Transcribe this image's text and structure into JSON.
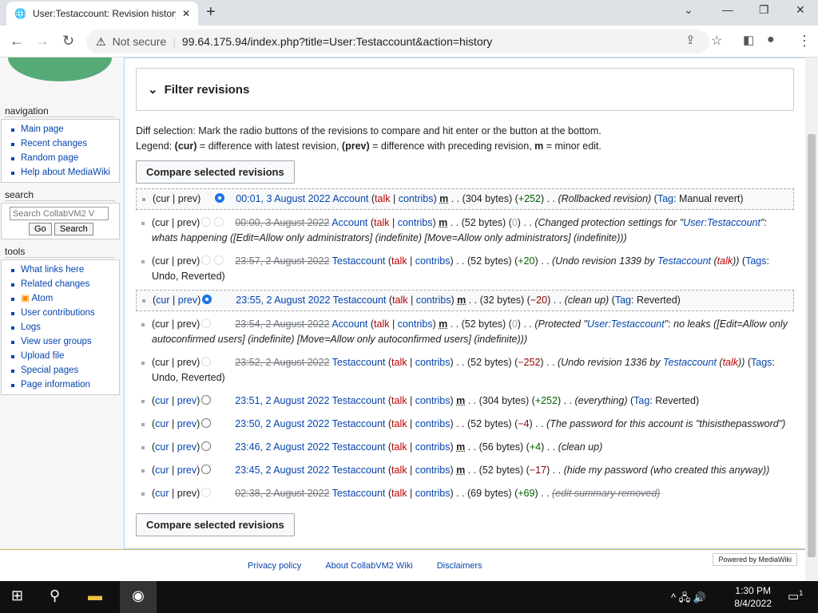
{
  "browser": {
    "tab_title": "User:Testaccount: Revision history",
    "security": "Not secure",
    "url": "99.64.175.94/index.php?title=User:Testaccount&action=history"
  },
  "sidebar": {
    "nav_heading": "navigation",
    "nav": [
      "Main page",
      "Recent changes",
      "Random page",
      "Help about MediaWiki"
    ],
    "search_heading": "search",
    "search_placeholder": "Search CollabVM2 V",
    "go": "Go",
    "search": "Search",
    "tools_heading": "tools",
    "tools": [
      "What links here",
      "Related changes",
      "Atom",
      "User contributions",
      "Logs",
      "View user groups",
      "Upload file",
      "Special pages",
      "Page information"
    ]
  },
  "filter_label": "Filter revisions",
  "legend": {
    "line1": "Diff selection: Mark the radio buttons of the revisions to compare and hit enter or the button at the bottom.",
    "l_prefix": "Legend: ",
    "cur": "(cur)",
    "cur_desc": " = difference with latest revision, ",
    "prev": "(prev)",
    "prev_desc": " = difference with preceding revision, ",
    "m": "m",
    "m_desc": " = minor edit."
  },
  "compare_label": "Compare selected revisions",
  "revisions": [
    {
      "cur_link": false,
      "prev_link": false,
      "r1": "hidden",
      "r2": "on",
      "date": "00:01, 3 August 2022",
      "deleted": false,
      "user": "Account",
      "minor": true,
      "size": "(304 bytes)",
      "diff": "+252",
      "sign": "pos",
      "summary": [
        {
          "t": "(Rollbacked revision)",
          "i": true
        }
      ],
      "tags": [
        {
          "t": " ("
        },
        {
          "t": "Tag",
          "l": true
        },
        {
          "t": ": Manual revert)"
        }
      ],
      "sel": true
    },
    {
      "cur_link": false,
      "prev_link": false,
      "r1": "dis",
      "r2": "dis",
      "date": "00:00, 3 August 2022",
      "deleted": true,
      "user": "Account",
      "minor": true,
      "size": "(52 bytes)",
      "diff": "0",
      "sign": "nul",
      "summary": [
        {
          "t": "(Changed protection settings for \"",
          "i": true
        },
        {
          "t": "User:Testaccount",
          "i": true,
          "l": true
        },
        {
          "t": "\": whats happening ([Edit=Allow only administrators] (indefinite) [Move=Allow only administrators] (indefinite)))",
          "i": true
        }
      ],
      "tags": []
    },
    {
      "cur_link": false,
      "prev_link": false,
      "r1": "dis",
      "r2": "dis",
      "date": "23:57, 2 August 2022",
      "deleted": true,
      "user": "Testaccount",
      "minor": false,
      "size": "(52 bytes)",
      "diff": "+20",
      "sign": "pos",
      "summary": [
        {
          "t": "(Undo revision 1339 by ",
          "i": true
        },
        {
          "t": "Testaccount",
          "i": true,
          "l": true
        },
        {
          "t": " (",
          "i": true
        },
        {
          "t": "talk",
          "i": true,
          "l": true,
          "red": true
        },
        {
          "t": "))",
          "i": true
        }
      ],
      "tags": [
        {
          "t": " ("
        },
        {
          "t": "Tags",
          "l": true
        },
        {
          "t": ": Undo, Reverted)"
        }
      ]
    },
    {
      "cur_link": true,
      "prev_link": true,
      "r1": "on",
      "r2": "hidden",
      "date": "23:55, 2 August 2022",
      "deleted": false,
      "user": "Testaccount",
      "minor": true,
      "size": "(32 bytes)",
      "diff": "−20",
      "sign": "neg",
      "summary": [
        {
          "t": "(clean up)",
          "i": true
        }
      ],
      "tags": [
        {
          "t": " ("
        },
        {
          "t": "Tag",
          "l": true
        },
        {
          "t": ": Reverted)"
        }
      ],
      "sel": true
    },
    {
      "cur_link": false,
      "prev_link": false,
      "r1": "dis",
      "r2": "hidden",
      "date": "23:54, 2 August 2022",
      "deleted": true,
      "user": "Account",
      "minor": true,
      "size": "(52 bytes)",
      "diff": "0",
      "sign": "nul",
      "summary": [
        {
          "t": "(Protected \"",
          "i": true
        },
        {
          "t": "User:Testaccount",
          "i": true,
          "l": true
        },
        {
          "t": "\": no leaks ([Edit=Allow only autoconfirmed users] (indefinite) [Move=Allow only autoconfirmed users] (indefinite)))",
          "i": true
        }
      ],
      "tags": []
    },
    {
      "cur_link": false,
      "prev_link": false,
      "r1": "dis",
      "r2": "hidden",
      "date": "23:52, 2 August 2022",
      "deleted": true,
      "user": "Testaccount",
      "minor": false,
      "size": "(52 bytes)",
      "diff": "−252",
      "sign": "neg",
      "summary": [
        {
          "t": "(Undo revision 1336 by ",
          "i": true
        },
        {
          "t": "Testaccount",
          "i": true,
          "l": true
        },
        {
          "t": " (",
          "i": true
        },
        {
          "t": "talk",
          "i": true,
          "l": true,
          "red": true
        },
        {
          "t": "))",
          "i": true
        }
      ],
      "tags": [
        {
          "t": " ("
        },
        {
          "t": "Tags",
          "l": true
        },
        {
          "t": ": Undo, Reverted)"
        }
      ]
    },
    {
      "cur_link": true,
      "prev_link": true,
      "r1": "off",
      "r2": "hidden",
      "date": "23:51, 2 August 2022",
      "deleted": false,
      "user": "Testaccount",
      "minor": true,
      "size": "(304 bytes)",
      "diff": "+252",
      "sign": "pos",
      "summary": [
        {
          "t": "(everything)",
          "i": true
        }
      ],
      "tags": [
        {
          "t": " ("
        },
        {
          "t": "Tag",
          "l": true
        },
        {
          "t": ": Reverted)"
        }
      ]
    },
    {
      "cur_link": true,
      "prev_link": true,
      "r1": "off",
      "r2": "hidden",
      "date": "23:50, 2 August 2022",
      "deleted": false,
      "user": "Testaccount",
      "minor": false,
      "size": "(52 bytes)",
      "diff": "−4",
      "sign": "neg",
      "summary": [
        {
          "t": "(The password for this account is \"thisisthepassword\")",
          "i": true
        }
      ],
      "tags": []
    },
    {
      "cur_link": true,
      "prev_link": true,
      "r1": "off",
      "r2": "hidden",
      "date": "23:46, 2 August 2022",
      "deleted": false,
      "user": "Testaccount",
      "minor": true,
      "size": "(56 bytes)",
      "diff": "+4",
      "sign": "pos",
      "summary": [
        {
          "t": "(clean up)",
          "i": true
        }
      ],
      "tags": []
    },
    {
      "cur_link": true,
      "prev_link": true,
      "r1": "off",
      "r2": "hidden",
      "date": "23:45, 2 August 2022",
      "deleted": false,
      "user": "Testaccount",
      "minor": true,
      "size": "(52 bytes)",
      "diff": "−17",
      "sign": "neg",
      "summary": [
        {
          "t": "(hide my password (who created this anyway))",
          "i": true
        }
      ],
      "tags": []
    },
    {
      "cur_link": true,
      "prev_link": false,
      "r1": "dis",
      "r2": "hidden",
      "date": "02:38, 2 August 2022",
      "deleted": true,
      "user": "Testaccount",
      "minor": false,
      "size": "(69 bytes)",
      "diff": "+69",
      "sign": "pos",
      "summary": [
        {
          "t": "(edit summary removed)",
          "i": true,
          "d": true
        }
      ],
      "tags": []
    }
  ],
  "rev_text": {
    "cur": "cur",
    "prev": "prev",
    "talk": "talk",
    "contribs": "contribs",
    "m": "m",
    "dots": " . . "
  },
  "footer": {
    "privacy": "Privacy policy",
    "about": "About CollabVM2 Wiki",
    "disclaimers": "Disclaimers",
    "powered": "Powered by MediaWiki"
  },
  "taskbar": {
    "time": "1:30 PM",
    "date": "8/4/2022",
    "notifications": "1"
  }
}
